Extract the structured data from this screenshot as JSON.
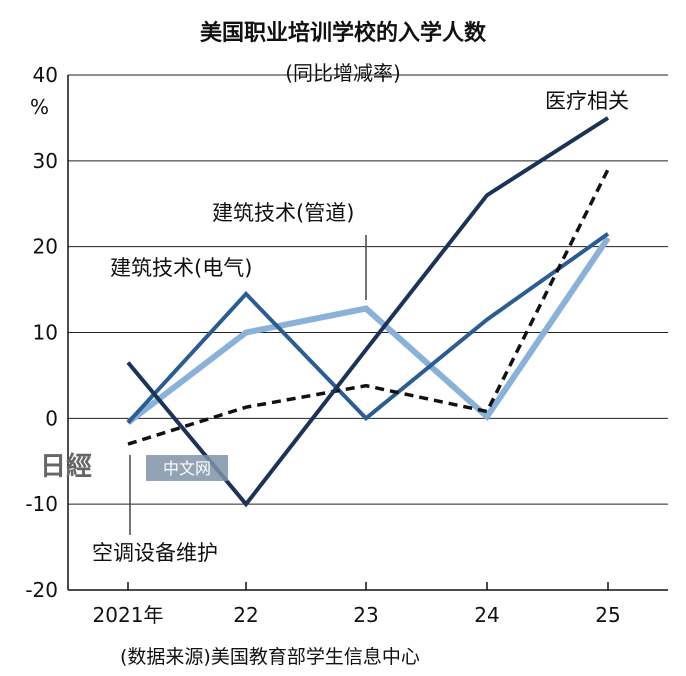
{
  "chart_data": {
    "type": "line",
    "title": "美国职业培训学校的入学人数",
    "subtitle": "(同比增减率)",
    "unit": "%",
    "x": [
      "2021年",
      "22",
      "23",
      "24",
      "25"
    ],
    "ylim": [
      -20,
      40
    ],
    "yticks": [
      "40",
      "30",
      "20",
      "10",
      "0",
      "-10",
      "-20"
    ],
    "grid": true,
    "series": [
      {
        "name": "医疗相关",
        "values": [
          6.5,
          -10,
          8,
          26,
          35
        ],
        "color": "#1b3358",
        "style": "solid"
      },
      {
        "name": "建筑技术(电气)",
        "values": [
          -0.5,
          14.5,
          0,
          11.5,
          21.5
        ],
        "color": "#2a5d93",
        "style": "solid"
      },
      {
        "name": "建筑技术(管道)",
        "values": [
          -0.5,
          10,
          12.8,
          0.2,
          21
        ],
        "color": "#8ab1d8",
        "style": "solid"
      },
      {
        "name": "空调设备维护",
        "values": [
          -3,
          1.3,
          3.8,
          0.8,
          29
        ],
        "color": "#111111",
        "style": "dashed"
      }
    ],
    "annotations": {
      "medical": "医疗相关",
      "electrical": "建筑技术(电气)",
      "plumbing": "建筑技术(管道)",
      "hvac": "空调设备维护"
    },
    "source": "(数据来源)美国教育部学生信息中心"
  },
  "watermark": {
    "logo": "日經",
    "text": "中文网"
  }
}
